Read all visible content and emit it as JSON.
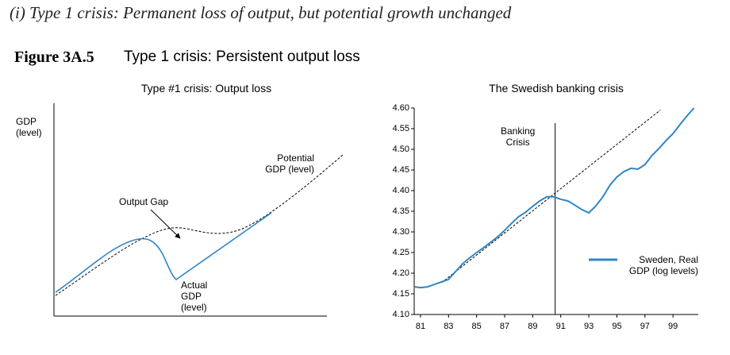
{
  "heading": "(i) Type 1 crisis: Permanent loss of output, but potential growth unchanged",
  "figure": {
    "label": "Figure 3A.5",
    "title": "Type 1 crisis: Persistent output loss"
  },
  "schematic": {
    "title": "Type #1 crisis: Output loss",
    "y_label": "GDP\n(level)",
    "potential_label": "Potential\nGDP (level)",
    "gap_label": "Output Gap",
    "actual_label": "Actual\nGDP\n(level)"
  },
  "chart_data": {
    "type": "line",
    "title": "The Swedish banking crisis",
    "xlim": [
      80.55,
      100.8
    ],
    "xticks": [
      81,
      83,
      85,
      87,
      89,
      91,
      93,
      95,
      97,
      99
    ],
    "ylim": [
      4.1,
      4.6
    ],
    "yticks": [
      {
        "value": 4.1,
        "label": "4.10"
      },
      4.15,
      {
        "value": 4.2,
        "label": "4.20"
      },
      4.25,
      {
        "value": 4.3,
        "label": "4.30"
      },
      4.35,
      {
        "value": 4.4,
        "label": "4.40"
      },
      4.45,
      {
        "value": 4.5,
        "label": "4.50"
      },
      4.55,
      {
        "value": 4.6,
        "label": "4.60"
      }
    ],
    "series": [
      {
        "name": "Sweden, Real\nGDP (log levels)",
        "color": "#2f86c6",
        "x": [
          80.6,
          81,
          81.5,
          82,
          82.5,
          83,
          83.5,
          84,
          84.5,
          85,
          85.5,
          86,
          86.5,
          87,
          87.5,
          88,
          88.5,
          89,
          89.5,
          90,
          90.5,
          91,
          91.5,
          92,
          92.5,
          93,
          93.5,
          94,
          94.5,
          95,
          95.5,
          96,
          96.5,
          97,
          97.5,
          98,
          98.5,
          99,
          99.5,
          100,
          100.5
        ],
        "values": [
          4.167,
          4.165,
          4.167,
          4.173,
          4.179,
          4.185,
          4.204,
          4.223,
          4.237,
          4.25,
          4.262,
          4.275,
          4.288,
          4.304,
          4.321,
          4.337,
          4.348,
          4.362,
          4.375,
          4.385,
          4.385,
          4.379,
          4.375,
          4.365,
          4.354,
          4.346,
          4.363,
          4.385,
          4.413,
          4.433,
          4.446,
          4.454,
          4.452,
          4.463,
          4.485,
          4.502,
          4.521,
          4.538,
          4.56,
          4.581,
          4.6
        ]
      }
    ],
    "trend": {
      "x": [
        82.5,
        98.1
      ],
      "values": [
        4.177,
        4.595
      ]
    },
    "crisis": {
      "x": 90.6,
      "label": "Banking\nCrisis"
    }
  }
}
